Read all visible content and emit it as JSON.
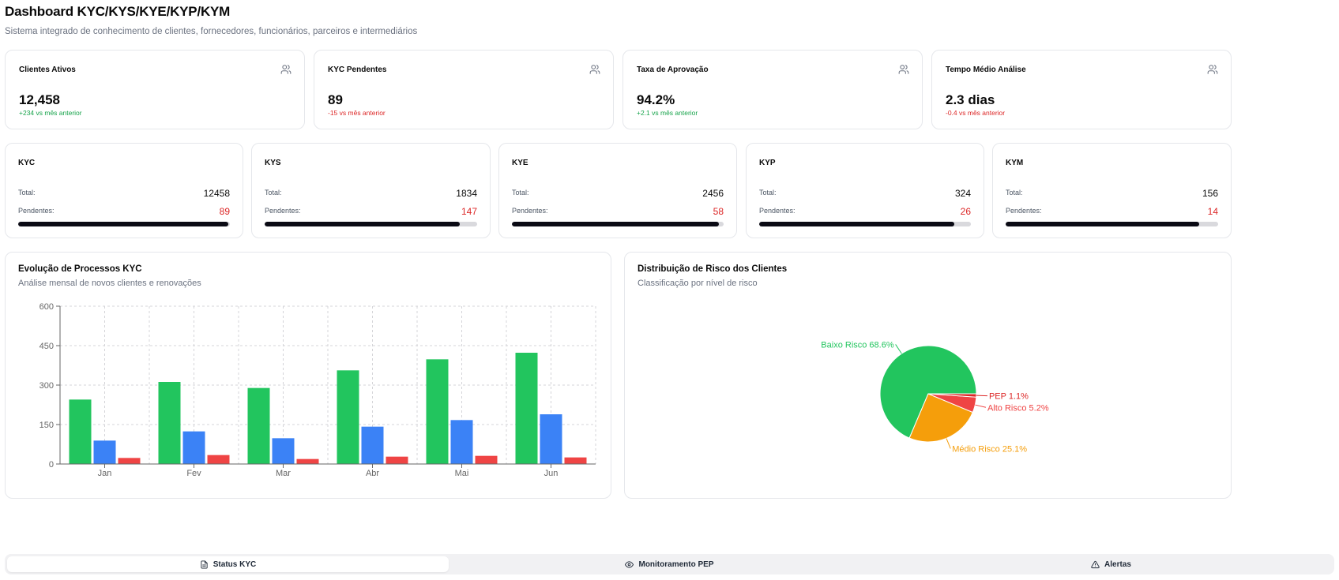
{
  "header": {
    "title": "Dashboard KYC/KYS/KYE/KYP/KYM",
    "subtitle": "Sistema integrado de conhecimento de clientes, fornecedores, funcionários, parceiros e intermediários"
  },
  "kpis": [
    {
      "title": "Clientes Ativos",
      "value": "12,458",
      "delta": "+234 vs mês anterior",
      "trend": "up",
      "icon": "users-icon"
    },
    {
      "title": "KYC Pendentes",
      "value": "89",
      "delta": "-15 vs mês anterior",
      "trend": "down",
      "icon": "users-icon"
    },
    {
      "title": "Taxa de Aprovação",
      "value": "94.2%",
      "delta": "+2.1 vs mês anterior",
      "trend": "up",
      "icon": "users-icon"
    },
    {
      "title": "Tempo Médio Análise",
      "value": "2.3 dias",
      "delta": "-0.4 vs mês anterior",
      "trend": "down",
      "icon": "users-icon"
    }
  ],
  "modules": [
    {
      "name": "KYC",
      "total_label": "Total:",
      "total": "12458",
      "pending_label": "Pendentes:",
      "pending": "89",
      "progress": 0.993
    },
    {
      "name": "KYS",
      "total_label": "Total:",
      "total": "1834",
      "pending_label": "Pendentes:",
      "pending": "147",
      "progress": 0.92
    },
    {
      "name": "KYE",
      "total_label": "Total:",
      "total": "2456",
      "pending_label": "Pendentes:",
      "pending": "58",
      "progress": 0.976
    },
    {
      "name": "KYP",
      "total_label": "Total:",
      "total": "324",
      "pending_label": "Pendentes:",
      "pending": "26",
      "progress": 0.92
    },
    {
      "name": "KYM",
      "total_label": "Total:",
      "total": "156",
      "pending_label": "Pendentes:",
      "pending": "14",
      "progress": 0.91
    }
  ],
  "bar_chart": {
    "title": "Evolução de Processos KYC",
    "subtitle": "Análise mensal de novos clientes e renovações"
  },
  "pie_chart": {
    "title": "Distribuição de Risco dos Clientes",
    "subtitle": "Classificação por nível de risco"
  },
  "chart_data": [
    {
      "type": "bar",
      "categories": [
        "Jan",
        "Fev",
        "Mar",
        "Abr",
        "Mai",
        "Jun"
      ],
      "series": [
        {
          "values": [
            245,
            312,
            289,
            356,
            398,
            423
          ],
          "color": "#22c55e"
        },
        {
          "values": [
            89,
            124,
            98,
            142,
            167,
            189
          ],
          "color": "#3b82f6"
        },
        {
          "values": [
            23,
            34,
            19,
            28,
            31,
            25
          ],
          "color": "#ef4444"
        }
      ],
      "yticks": [
        "0",
        "150",
        "300",
        "450",
        "600"
      ],
      "ylim": [
        0,
        600
      ],
      "grid": true
    },
    {
      "type": "pie",
      "slices": [
        {
          "label": "Baixo Risco 68.6%",
          "value": 68.6,
          "color": "#22c55e"
        },
        {
          "label": "Médio Risco 25.1%",
          "value": 25.1,
          "color": "#f59e0b"
        },
        {
          "label": "Alto Risco 5.2%",
          "value": 5.2,
          "color": "#ef4444"
        },
        {
          "label": "PEP 1.1%",
          "value": 1.1,
          "color": "#dc2626"
        }
      ]
    }
  ],
  "tabs": [
    {
      "label": "Status KYC",
      "icon": "file-icon",
      "active": true
    },
    {
      "label": "Monitoramento PEP",
      "icon": "eye-icon",
      "active": false
    },
    {
      "label": "Alertas",
      "icon": "warning-icon",
      "active": false
    }
  ]
}
